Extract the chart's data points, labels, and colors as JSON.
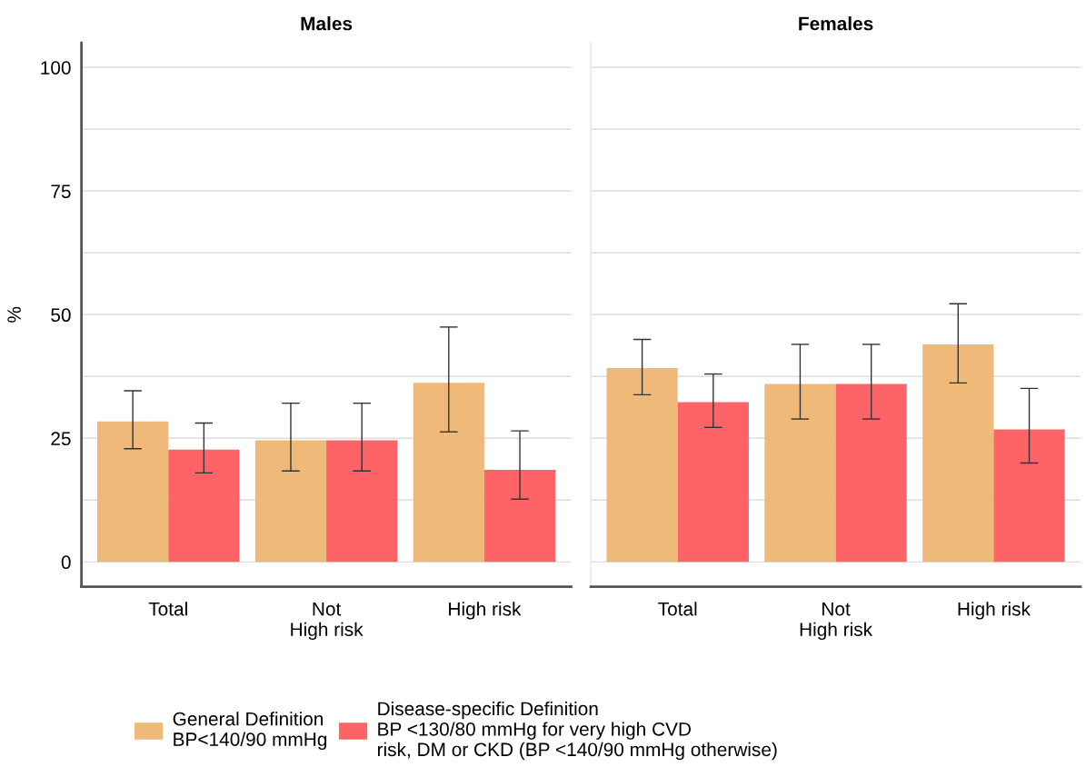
{
  "chart_data": [
    {
      "type": "bar",
      "title": "Males",
      "ylabel": "%",
      "categories": [
        "Total",
        "Not\nHigh risk",
        "High risk"
      ],
      "series": [
        {
          "name": "General Definition\nBP<140/90 mmHg",
          "color": "#efb97a",
          "values": [
            28.4,
            24.6,
            36.2
          ],
          "errors": [
            [
              22.9,
              34.6
            ],
            [
              18.4,
              32.1
            ],
            [
              26.3,
              47.5
            ]
          ]
        },
        {
          "name": "Disease-specific Definition\nBP <130/80 mmHg for very high CVD\nrisk, DM or CKD (BP <140/90 mmHg otherwise)",
          "color": "#fe6467",
          "values": [
            22.7,
            24.6,
            18.6
          ],
          "errors": [
            [
              18.0,
              28.1
            ],
            [
              18.4,
              32.1
            ],
            [
              12.7,
              26.5
            ]
          ]
        }
      ],
      "ylim": [
        -5,
        105
      ],
      "yticks": [
        0,
        {
          "value": 12.5,
          "label": null
        },
        25,
        {
          "value": 37.5,
          "label": null
        },
        50,
        {
          "value": 62.5,
          "label": null
        },
        75,
        {
          "value": 87.5,
          "label": null
        },
        100
      ],
      "grid": "y",
      "legend": "bottom"
    },
    {
      "type": "bar",
      "title": "Females",
      "categories": [
        "Total",
        "Not\nHigh risk",
        "High risk"
      ],
      "series": [
        {
          "color": "#efb97a",
          "values": [
            39.2,
            36.0,
            44.0
          ],
          "errors": [
            [
              33.8,
              45.0
            ],
            [
              28.9,
              44.0
            ],
            [
              36.2,
              52.2
            ]
          ]
        },
        {
          "color": "#fe6467",
          "values": [
            32.3,
            36.0,
            26.8
          ],
          "errors": [
            [
              27.2,
              38.0
            ],
            [
              28.9,
              44.0
            ],
            [
              20.0,
              35.1
            ]
          ]
        }
      ],
      "ylim": [
        -5,
        105
      ],
      "yticks": [
        0,
        {
          "value": 12.5,
          "label": null
        },
        25,
        {
          "value": 37.5,
          "label": null
        },
        50,
        {
          "value": 62.5,
          "label": null
        },
        75,
        {
          "value": 87.5,
          "label": null
        },
        100
      ],
      "grid": "y",
      "tick_labels": "x"
    }
  ]
}
